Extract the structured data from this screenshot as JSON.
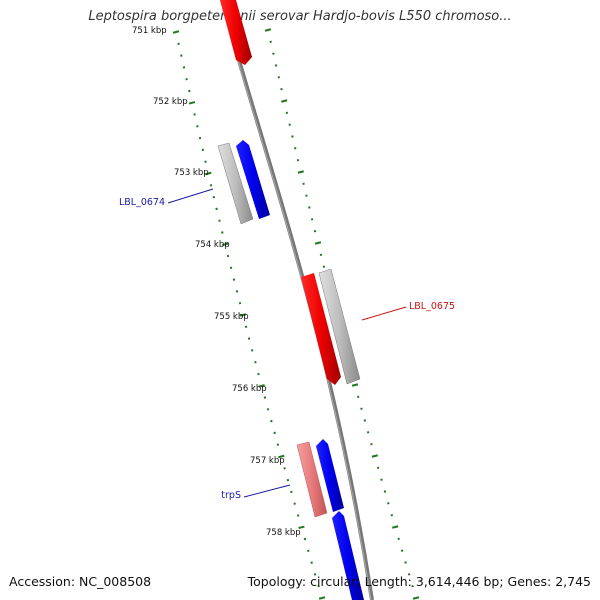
{
  "title": "Leptospira borgpetersenii serovar Hardjo-bovis L550 chromoso...",
  "footer": {
    "accession": "Accession: NC_008508",
    "summary": "Topology: circular; Length: 3,614,446 bp; Genes: 2,745"
  },
  "ticks": [
    {
      "label": "751 kbp",
      "value": 751
    },
    {
      "label": "752 kbp",
      "value": 752
    },
    {
      "label": "753 kbp",
      "value": 753
    },
    {
      "label": "754 kbp",
      "value": 754
    },
    {
      "label": "755 kbp",
      "value": 755
    },
    {
      "label": "756 kbp",
      "value": 756
    },
    {
      "label": "757 kbp",
      "value": 757
    },
    {
      "label": "758 kbp",
      "value": 758
    }
  ],
  "gene_labels": [
    {
      "text": "LBL_0674",
      "color": "#1a1aa8"
    },
    {
      "text": "LBL_0675",
      "color": "#cc1111"
    },
    {
      "text": "trpS",
      "color": "#1a1aa8"
    }
  ],
  "colors": {
    "backbone": "#777777",
    "ticks": "#1c7a1c",
    "forward_cds": "#0000ee",
    "reverse_cds": "#ee0000",
    "gene": "#bdbdbd",
    "rna": "#e87a7a"
  }
}
